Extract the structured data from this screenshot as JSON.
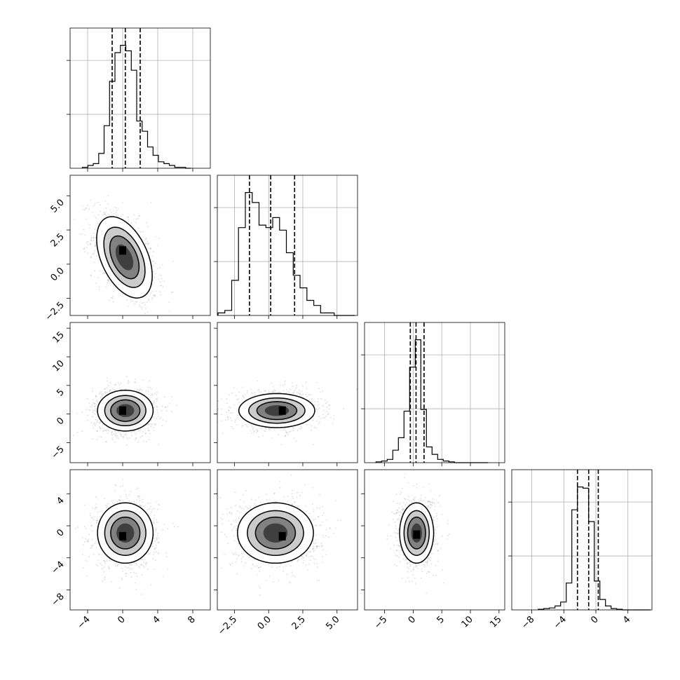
{
  "chart_data": {
    "type": "corner",
    "title": "",
    "grid": true,
    "params": [
      {
        "range": [
          -6.0,
          10.0
        ],
        "xticks": [
          -4,
          0,
          4,
          8
        ],
        "xtick_labels": [
          "−4",
          "0",
          "4",
          "8"
        ],
        "quantiles": [
          -1.2,
          0.3,
          2.0
        ],
        "hist_bin_start": -4.6,
        "hist_bin_width": 0.62,
        "hist_counts": [
          1,
          3,
          5,
          16,
          46,
          94,
          125,
          133,
          127,
          106,
          51,
          40,
          23,
          14,
          7,
          5,
          3,
          1,
          1,
          0
        ]
      },
      {
        "range": [
          -3.75,
          6.5
        ],
        "xticks": [
          -2.5,
          0.0,
          2.5,
          5.0
        ],
        "xtick_labels": [
          "−2.5",
          "0.0",
          "2.5",
          "5.0"
        ],
        "yticks": [
          -2.5,
          0.0,
          2.5,
          5.0
        ],
        "ytick_labels": [
          "−2.5",
          "0.0",
          "2.5",
          "5.0"
        ],
        "quantiles": [
          -1.4,
          0.15,
          1.9
        ],
        "hist_bin_start": -3.7,
        "hist_bin_width": 0.5,
        "hist_counts": [
          1,
          2,
          14,
          35,
          49,
          45,
          36,
          35,
          39,
          34,
          25,
          16,
          11,
          6,
          4,
          1,
          1,
          0,
          0,
          0
        ]
      },
      {
        "range": [
          -8.5,
          16.0
        ],
        "xticks": [
          -5,
          0,
          5,
          10,
          15
        ],
        "xtick_labels": [
          "−5",
          "0",
          "5",
          "10",
          "15"
        ],
        "yticks": [
          -5,
          0,
          5,
          10,
          15
        ],
        "ytick_labels": [
          "−5",
          "0",
          "5",
          "10",
          "15"
        ],
        "quantiles": [
          -0.5,
          0.5,
          1.9
        ],
        "hist_bin_start": -6.5,
        "hist_bin_width": 0.98,
        "hist_counts": [
          1,
          2,
          4,
          15,
          30,
          62,
          115,
          148,
          64,
          19,
          10,
          4,
          2,
          1,
          0,
          0,
          0,
          0,
          0,
          0
        ]
      },
      {
        "range": [
          -10.5,
          7.0
        ],
        "xticks": [
          -8,
          -4,
          0,
          4
        ],
        "xtick_labels": [
          "−8",
          "−4",
          "0",
          "4"
        ],
        "yticks": [
          -8,
          -4,
          0,
          4
        ],
        "ytick_labels": [
          "−8",
          "−4",
          "0",
          "4"
        ],
        "quantiles": [
          -2.3,
          -0.9,
          0.3
        ],
        "hist_bin_start": -7.2,
        "hist_bin_width": 0.7,
        "hist_counts": [
          1,
          2,
          3,
          6,
          12,
          41,
          153,
          188,
          186,
          135,
          44,
          16,
          6,
          2,
          1,
          0,
          0,
          0,
          0,
          0
        ]
      }
    ],
    "pairs": [
      {
        "row": 1,
        "col": 0,
        "center": [
          0.2,
          0.5
        ],
        "sigma": [
          1.6,
          1.5
        ],
        "rho": -0.45,
        "peak": [
          0.0,
          1.0
        ]
      },
      {
        "row": 2,
        "col": 0,
        "center": [
          0.3,
          0.6
        ],
        "sigma": [
          1.6,
          1.8
        ],
        "rho": 0.0,
        "peak": [
          0.0,
          0.6
        ]
      },
      {
        "row": 2,
        "col": 1,
        "center": [
          0.6,
          0.6
        ],
        "sigma": [
          1.4,
          1.5
        ],
        "rho": 0.0,
        "peak": [
          1.0,
          0.6
        ]
      },
      {
        "row": 3,
        "col": 0,
        "center": [
          0.3,
          -0.9
        ],
        "sigma": [
          1.6,
          1.9
        ],
        "rho": 0.0,
        "peak": [
          0.0,
          -1.3
        ]
      },
      {
        "row": 3,
        "col": 1,
        "center": [
          0.5,
          -0.9
        ],
        "sigma": [
          1.4,
          1.9
        ],
        "rho": 0.0,
        "peak": [
          1.0,
          -1.3
        ]
      },
      {
        "row": 3,
        "col": 2,
        "center": [
          0.6,
          -0.9
        ],
        "sigma": [
          1.5,
          1.9
        ],
        "rho": 0.0,
        "peak": [
          0.6,
          -1.1
        ]
      }
    ]
  }
}
